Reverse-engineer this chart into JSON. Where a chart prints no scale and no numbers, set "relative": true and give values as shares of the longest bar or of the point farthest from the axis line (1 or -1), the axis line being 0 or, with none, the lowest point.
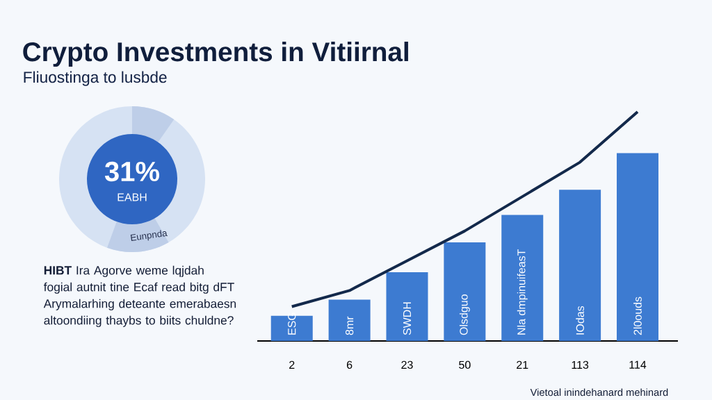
{
  "chart_data": [
    {
      "type": "bar",
      "title": "Crypto Investments in Vitiirnal",
      "subtitle": "Fliuostinga to lusbde",
      "relative": true,
      "categories": [
        "2",
        "6",
        "23",
        "50",
        "21",
        "113",
        "114"
      ],
      "series": [
        {
          "type": "bar",
          "color": "#3d7bd1",
          "values": [
            0.11,
            0.18,
            0.3,
            0.43,
            0.55,
            0.66,
            0.82
          ]
        },
        {
          "type": "line",
          "color": "#13294b",
          "values": [
            0.15,
            0.22,
            0.35,
            0.48,
            0.63,
            0.78,
            1.0
          ]
        }
      ],
      "annotations": [
        "**HIBT** Ira Agorve weme lqjdah fogial autnit tine Ecaf read bitg dFT Arymalarhing deteante emerabaesn altoondiing thaybs to biits chuldne?",
        "Vietoal inindehanard mehinard",
        "ESG",
        "8mr",
        "SWDH",
        "Olsdguo",
        "Nla dmpinuifeasT",
        "IOdas",
        "2l0ouds"
      ]
    },
    {
      "type": "other",
      "annotations": [
        "31%",
        "EABH",
        "Eunpnda"
      ]
    }
  ]
}
